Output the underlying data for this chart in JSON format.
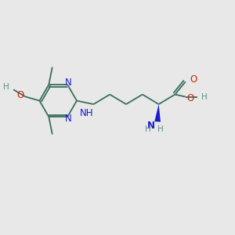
{
  "bg_color": "#e8e8e8",
  "bond_color": "#3a6e5e",
  "bond_width": 1.3,
  "n_color": "#1a1acc",
  "o_color": "#cc2200",
  "h_color": "#5a9080",
  "c_color": "#3a6e5e",
  "font_size_atom": 8.5,
  "font_size_small": 7.5,
  "figsize": [
    3.0,
    3.0
  ],
  "dpi": 100,
  "xlim": [
    0,
    10
  ],
  "ylim": [
    0,
    10
  ]
}
